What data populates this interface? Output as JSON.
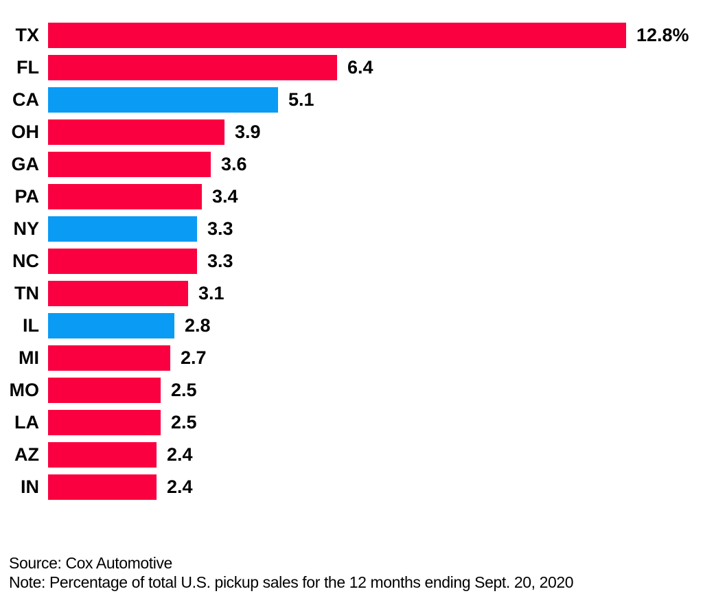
{
  "chart_data": {
    "type": "bar",
    "orientation": "horizontal",
    "title": "",
    "xlabel": "",
    "ylabel": "",
    "xlim": [
      0,
      12.8
    ],
    "grid": false,
    "legend": false,
    "categories": [
      "TX",
      "FL",
      "CA",
      "OH",
      "GA",
      "PA",
      "NY",
      "NC",
      "TN",
      "IL",
      "MI",
      "MO",
      "LA",
      "AZ",
      "IN"
    ],
    "values": [
      12.8,
      6.4,
      5.1,
      3.9,
      3.6,
      3.4,
      3.3,
      3.3,
      3.1,
      2.8,
      2.7,
      2.5,
      2.5,
      2.4,
      2.4
    ],
    "bars": [
      {
        "state": "TX",
        "value": 12.8,
        "value_label": "12.8%",
        "color": "red"
      },
      {
        "state": "FL",
        "value": 6.4,
        "value_label": "6.4",
        "color": "red"
      },
      {
        "state": "CA",
        "value": 5.1,
        "value_label": "5.1",
        "color": "blue"
      },
      {
        "state": "OH",
        "value": 3.9,
        "value_label": "3.9",
        "color": "red"
      },
      {
        "state": "GA",
        "value": 3.6,
        "value_label": "3.6",
        "color": "red"
      },
      {
        "state": "PA",
        "value": 3.4,
        "value_label": "3.4",
        "color": "red"
      },
      {
        "state": "NY",
        "value": 3.3,
        "value_label": "3.3",
        "color": "blue"
      },
      {
        "state": "NC",
        "value": 3.3,
        "value_label": "3.3",
        "color": "red"
      },
      {
        "state": "TN",
        "value": 3.1,
        "value_label": "3.1",
        "color": "red"
      },
      {
        "state": "IL",
        "value": 2.8,
        "value_label": "2.8",
        "color": "blue"
      },
      {
        "state": "MI",
        "value": 2.7,
        "value_label": "2.7",
        "color": "red"
      },
      {
        "state": "MO",
        "value": 2.5,
        "value_label": "2.5",
        "color": "red"
      },
      {
        "state": "LA",
        "value": 2.5,
        "value_label": "2.5",
        "color": "red"
      },
      {
        "state": "AZ",
        "value": 2.4,
        "value_label": "2.4",
        "color": "red"
      },
      {
        "state": "IN",
        "value": 2.4,
        "value_label": "2.4",
        "color": "red"
      }
    ]
  },
  "colors": {
    "red": "#fa0040",
    "blue": "#0a9bf5",
    "text": "#000000",
    "background": "#ffffff"
  },
  "footer": {
    "source": "Source: Cox Automotive",
    "note": "Note: Percentage of total U.S. pickup sales for the 12 months ending Sept. 20, 2020"
  }
}
